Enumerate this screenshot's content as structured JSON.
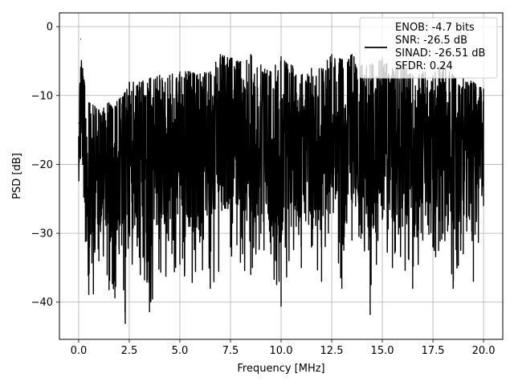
{
  "chart_data": {
    "type": "line",
    "title": "",
    "xlabel": "Frequency [MHz]",
    "ylabel": "PSD [dB]",
    "xlim": [
      -0.95,
      20.95
    ],
    "ylim": [
      -45.4,
      2.0
    ],
    "xticks": [
      0.0,
      2.5,
      5.0,
      7.5,
      10.0,
      12.5,
      15.0,
      17.5,
      20.0
    ],
    "xtick_labels": [
      "0.0",
      "2.5",
      "5.0",
      "7.5",
      "10.0",
      "12.5",
      "15.0",
      "17.5",
      "20.0"
    ],
    "yticks": [
      0,
      -10,
      -20,
      -30,
      -40
    ],
    "ytick_labels": [
      "0",
      "−10",
      "−20",
      "−30",
      "−40"
    ],
    "grid": true,
    "legend_position": "top-right",
    "legend_entries": [
      "ENOB: -4.7 bits",
      "SNR: -26.5 dB",
      "SINAD: -26.51 dB",
      "SFDR: 0.24"
    ],
    "series": [
      {
        "name": "ENOB: -4.7 bits\nSNR: -26.5 dB\nSINAD: -26.51 dB\nSFDR: 0.24",
        "color": "#000000",
        "x": [
          0.0,
          0.1,
          0.2,
          0.3,
          0.5,
          0.8,
          1.0,
          1.5,
          2.0,
          2.3,
          2.5,
          3.0,
          3.5,
          4.0,
          4.5,
          5.0,
          5.5,
          6.0,
          6.5,
          7.0,
          7.5,
          8.0,
          8.5,
          9.0,
          9.5,
          10.0,
          10.5,
          11.0,
          11.5,
          12.0,
          12.5,
          13.0,
          13.5,
          14.0,
          14.4,
          15.0,
          15.5,
          16.0,
          16.5,
          17.0,
          17.5,
          18.0,
          18.5,
          19.0,
          19.5,
          20.0
        ],
        "y": [
          -14.0,
          -1.8,
          -20.0,
          -25.5,
          -38.9,
          -25.0,
          -34.0,
          -38.2,
          -33.0,
          -43.1,
          -30.0,
          -33.5,
          -41.4,
          -22.0,
          -25.0,
          -34.5,
          -29.0,
          -26.0,
          -38.0,
          -23.0,
          -32.0,
          -27.0,
          -36.0,
          -30.0,
          -33.0,
          -40.6,
          -29.0,
          -35.0,
          -32.0,
          -37.0,
          -22.0,
          -38.0,
          -31.0,
          -30.0,
          -41.8,
          -28.0,
          -35.0,
          -29.0,
          -38.0,
          -31.0,
          -32.0,
          -30.0,
          -38.0,
          -33.0,
          -37.0,
          -26.0
        ],
        "envelope_max": [
          -14.0,
          -1.8,
          -6.0,
          -8.5,
          -11.0,
          -11.5,
          -12.0,
          -11.0,
          -10.5,
          -9.5,
          -8.0,
          -8.0,
          -7.5,
          -7.0,
          -7.0,
          -6.5,
          -6.5,
          -6.8,
          -6.5,
          -4.0,
          -4.5,
          -5.0,
          -4.0,
          -5.5,
          -6.5,
          -4.3,
          -5.5,
          -7.0,
          -6.0,
          -6.0,
          -4.0,
          -4.8,
          -4.0,
          -5.5,
          -5.5,
          -4.5,
          -6.0,
          -5.0,
          -7.0,
          -6.5,
          -7.0,
          -5.0,
          -7.0,
          -7.5,
          -8.0,
          -9.0
        ],
        "envelope_min": [
          -26.0,
          -22.0,
          -28.0,
          -36.0,
          -38.9,
          -40.5,
          -34.5,
          -38.2,
          -41.0,
          -43.1,
          -38.0,
          -37.0,
          -41.4,
          -36.0,
          -37.0,
          -36.0,
          -38.0,
          -37.0,
          -38.5,
          -35.0,
          -33.0,
          -36.0,
          -37.0,
          -33.0,
          -35.0,
          -40.6,
          -33.0,
          -36.0,
          -35.5,
          -37.5,
          -30.0,
          -38.0,
          -34.0,
          -30.5,
          -41.8,
          -30.5,
          -36.0,
          -35.0,
          -38.5,
          -33.0,
          -34.0,
          -32.0,
          -39.0,
          -33.0,
          -36.5,
          -26.0
        ]
      }
    ]
  }
}
